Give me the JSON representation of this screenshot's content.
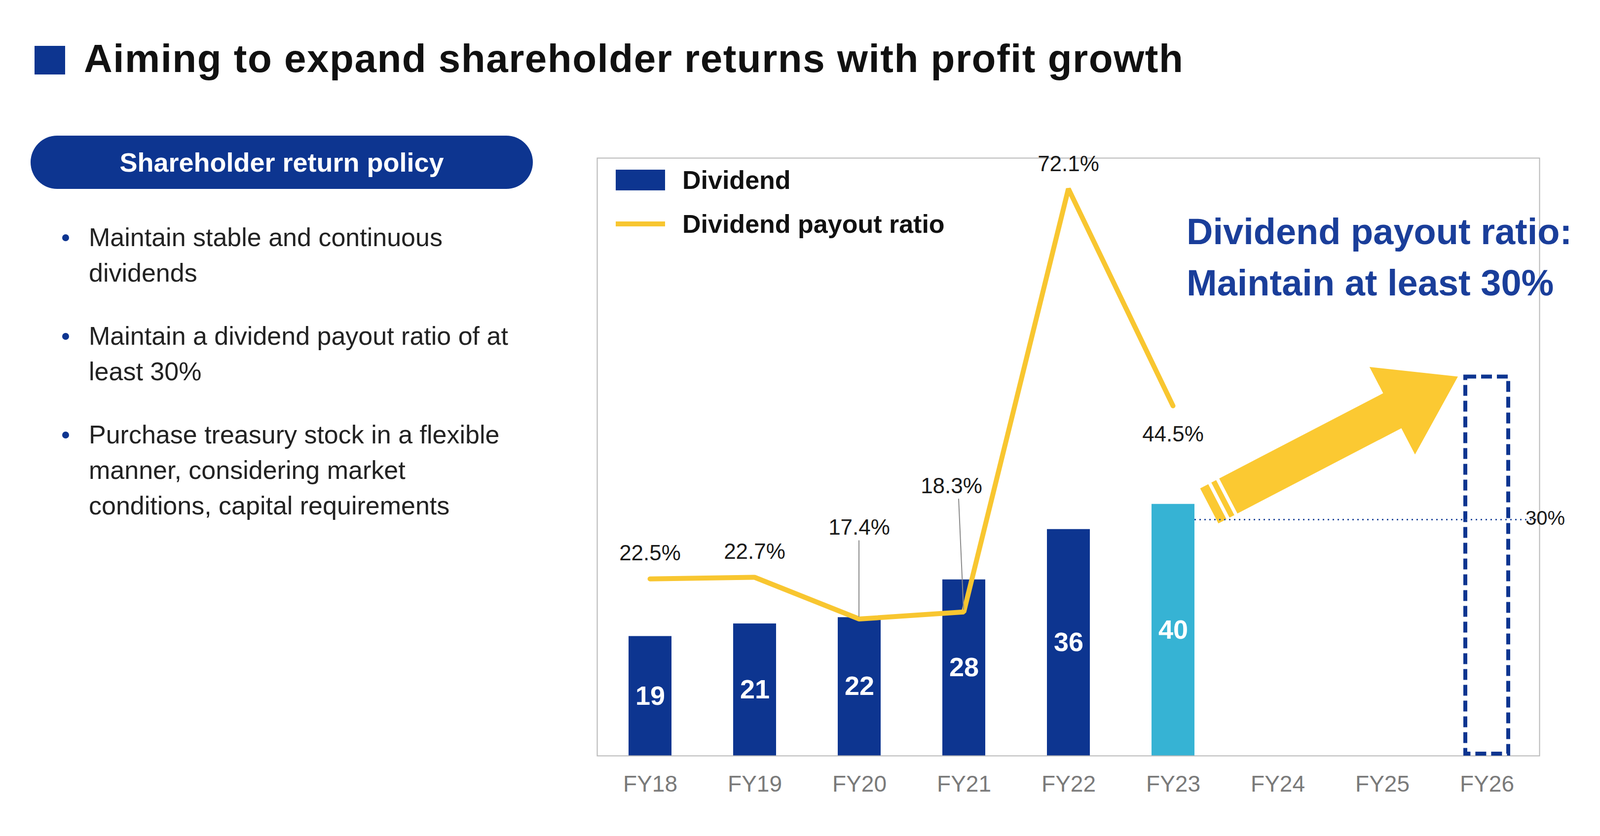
{
  "chart_data": {
    "type": "bar",
    "title": "Aiming to expand shareholder returns with profit growth",
    "categories": [
      "FY18",
      "FY19",
      "FY20",
      "FY21",
      "FY22",
      "FY23",
      "FY24",
      "FY25",
      "FY26"
    ],
    "series": [
      {
        "name": "Dividend",
        "type": "bar",
        "colors": [
          "#0d3590",
          "#0d3590",
          "#0d3590",
          "#0d3590",
          "#0d3590",
          "#36b3d4",
          "#0d3590",
          "#0d3590",
          "#0d3590"
        ],
        "values": [
          19,
          21,
          22,
          28,
          36,
          40,
          null,
          null,
          null
        ]
      },
      {
        "name": "Dividend payout ratio",
        "type": "line",
        "axis": "y2",
        "color": "#f8c630",
        "line_style": "solid",
        "values": [
          22.5,
          22.7,
          17.4,
          18.3,
          72.1,
          44.5,
          null,
          null,
          null
        ],
        "value_labels": [
          "22.5%",
          "22.7%",
          "17.4%",
          "18.3%",
          "72.1%",
          "44.5%",
          null,
          null,
          null
        ]
      }
    ],
    "ylim": [
      0,
      95
    ],
    "yticks": [],
    "y2lim": [
      0,
      76
    ],
    "y2ticks": [],
    "tick_labels": "x",
    "data_labels": true,
    "legend": "top-left",
    "target_line": {
      "value": 30,
      "label": "30%",
      "axis": "y2"
    },
    "annotation": [
      "Dividend payout ratio:",
      "Maintain at least 30%"
    ]
  },
  "policy": {
    "heading": "Shareholder return policy",
    "items": [
      "Maintain stable and continuous dividends",
      "Maintain a dividend payout ratio of at least 30%",
      "Purchase treasury stock in a flexible manner, considering market conditions, capital requirements"
    ]
  }
}
